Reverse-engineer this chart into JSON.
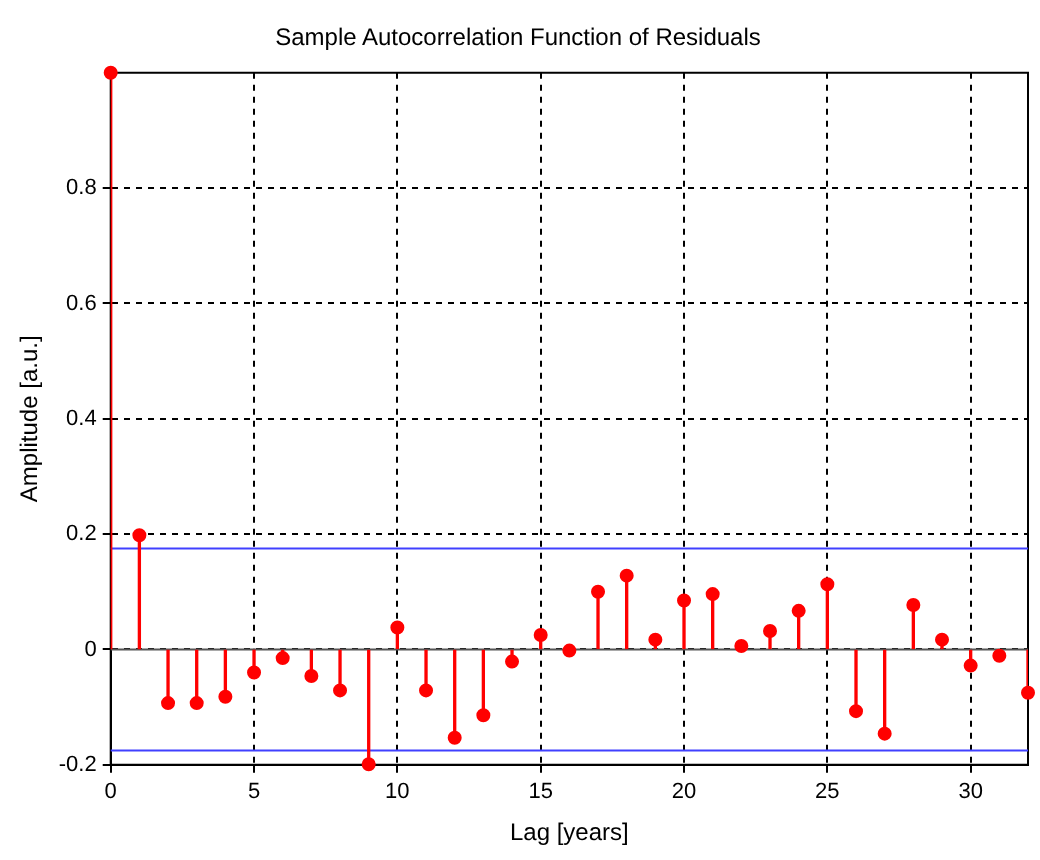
{
  "chart_data": {
    "type": "lollipop",
    "title": "Sample Autocorrelation Function of Residuals",
    "xlabel": "Lag [years]",
    "ylabel": "Amplitude [a.u.]",
    "x": [
      0,
      1,
      2,
      3,
      4,
      5,
      6,
      7,
      8,
      9,
      10,
      11,
      12,
      13,
      14,
      15,
      16,
      17,
      18,
      19,
      20,
      21,
      22,
      23,
      24,
      25,
      26,
      27,
      28,
      29,
      30,
      31,
      32
    ],
    "series": [
      {
        "color": "#ff0000",
        "values": [
          1,
          0.198,
          -0.093,
          -0.093,
          -0.082,
          -0.04,
          -0.015,
          -0.046,
          -0.071,
          -0.199,
          0.038,
          -0.071,
          -0.153,
          -0.114,
          -0.021,
          0.025,
          -0.002,
          0.1,
          0.128,
          0.017,
          0.085,
          0.096,
          0.006,
          0.032,
          0.067,
          0.113,
          -0.107,
          -0.146,
          0.077,
          0.017,
          -0.028,
          -0.011,
          -0.075
        ]
      }
    ],
    "xlim": [
      0,
      32
    ],
    "xticks": [
      0,
      5,
      10,
      15,
      20,
      25,
      30
    ],
    "ylim": [
      -0.2,
      1
    ],
    "yticks": [
      -0.2,
      0,
      0.2,
      0.4,
      0.6,
      0.8
    ],
    "ref_lines": [
      {
        "axis": "y",
        "value": 0.175,
        "color": "#4040ff"
      },
      {
        "axis": "y",
        "value": -0.175,
        "color": "#4040ff"
      }
    ],
    "grid": true,
    "marker": "circle"
  }
}
